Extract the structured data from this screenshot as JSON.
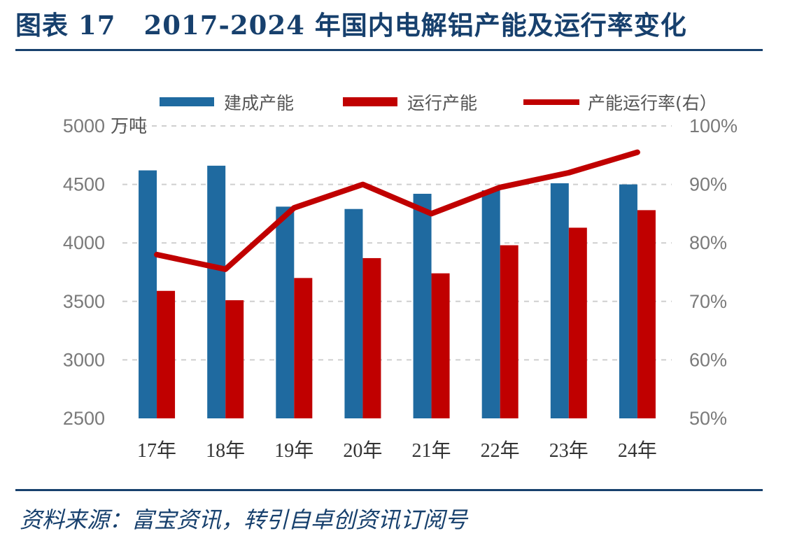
{
  "header": {
    "figure_label": "图表",
    "figure_number": "17",
    "title": "2017-2024 年国内电解铝产能及运行率变化"
  },
  "footer": {
    "source": "资料来源：富宝资讯，转引自卓创资讯订阅号"
  },
  "chart_data": {
    "type": "bar",
    "categories": [
      "17年",
      "18年",
      "19年",
      "20年",
      "21年",
      "22年",
      "23年",
      "24年"
    ],
    "series": [
      {
        "name": "建成产能",
        "type": "bar",
        "axis": "left",
        "color": "#1f6aa0",
        "values": [
          4620,
          4660,
          4310,
          4290,
          4420,
          4450,
          4510,
          4500
        ]
      },
      {
        "name": "运行产能",
        "type": "bar",
        "axis": "left",
        "color": "#c00000",
        "values": [
          3590,
          3510,
          3700,
          3870,
          3740,
          3980,
          4130,
          4280
        ]
      },
      {
        "name": "产能运行率(右）",
        "type": "line",
        "axis": "right",
        "color": "#c00000",
        "values": [
          0.78,
          0.755,
          0.86,
          0.9,
          0.85,
          0.895,
          0.92,
          0.955
        ]
      }
    ],
    "y_left": {
      "label": "万吨",
      "range": [
        2500,
        5000
      ],
      "ticks": [
        "2500",
        "3000",
        "3500",
        "4000",
        "4500",
        "5000"
      ]
    },
    "y_right": {
      "range": [
        0.5,
        1.0
      ],
      "ticks": [
        "50%",
        "60%",
        "70%",
        "80%",
        "90%",
        "100%"
      ]
    },
    "grid": "dashed-horizontal",
    "legend": "top"
  }
}
